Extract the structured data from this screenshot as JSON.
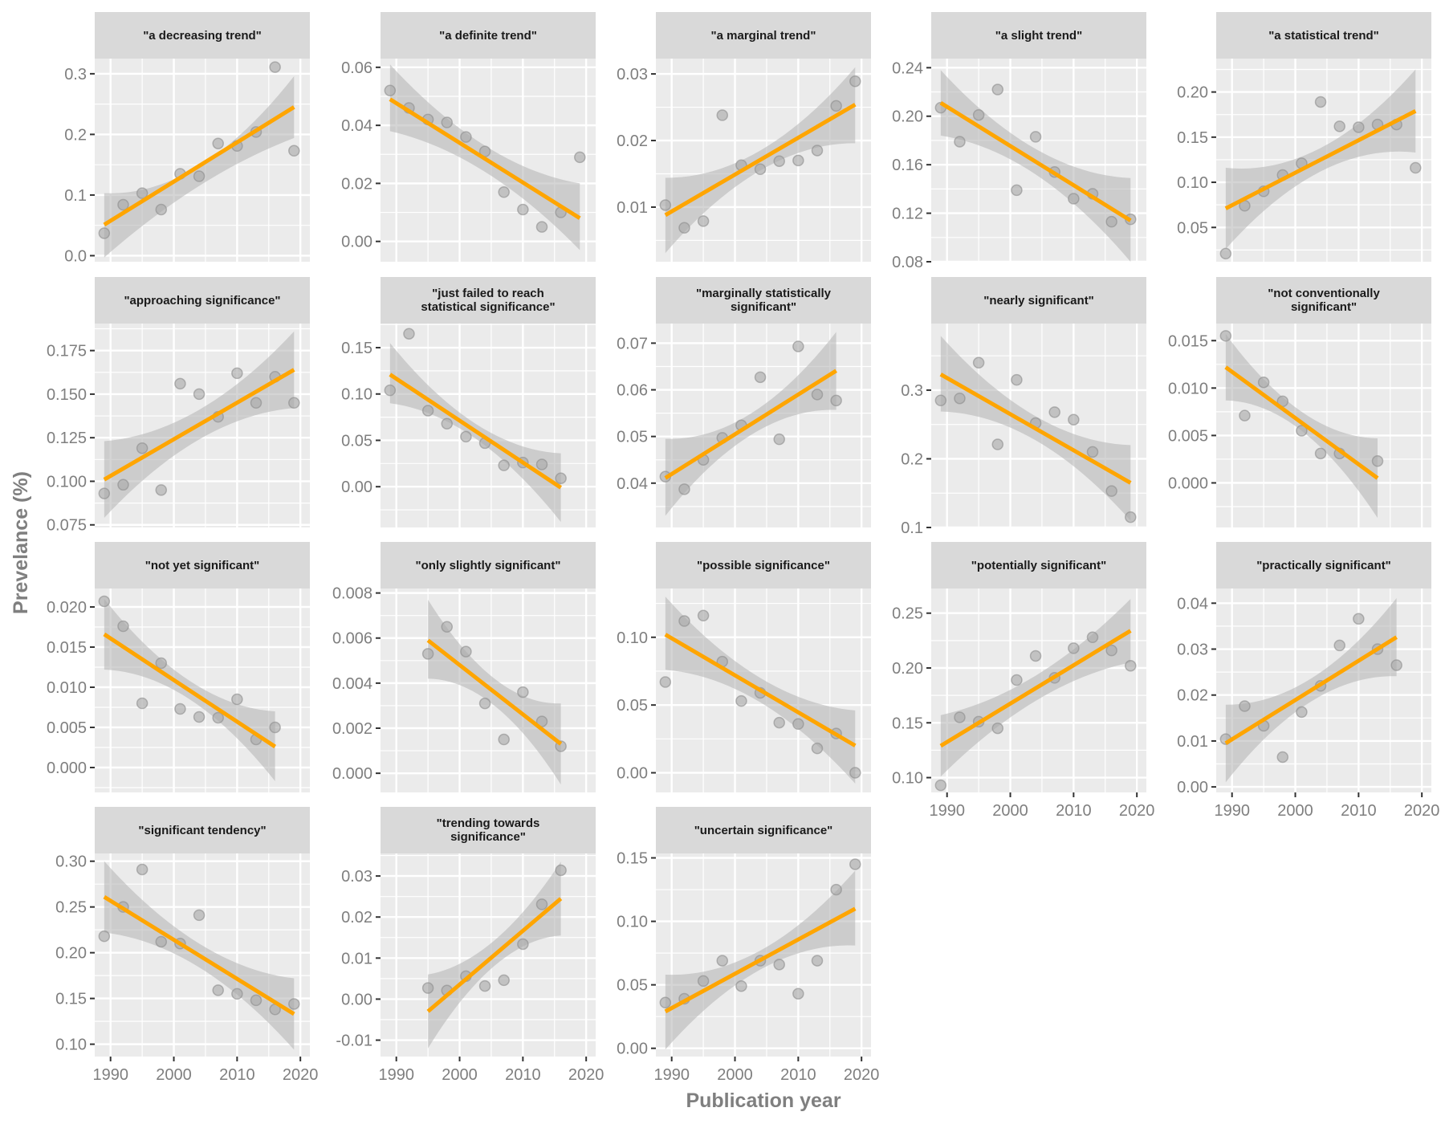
{
  "chart_data": {
    "type": "scatter",
    "description": "Faceted scatter plots with linear regression fit and 95% confidence band",
    "xlabel": "Publication year",
    "ylabel": "Prevelance (%)",
    "x_ticks": [
      1990,
      2000,
      2010,
      2020
    ],
    "xlim": [
      1987.5,
      2021.5
    ],
    "grid": true,
    "colors": {
      "panel_bg": "#ebebeb",
      "strip_bg": "#d9d9d9",
      "grid": "#ffffff",
      "point_fill": "#a6a6a6",
      "point_stroke": "#8c8c8c",
      "fit_line": "#ffa500",
      "ci_band": "#b3b3b3",
      "axis_text": "#7f7f7f"
    },
    "facets": [
      {
        "title": "\"a decreasing trend\"",
        "ylim": [
          -0.01,
          0.325
        ],
        "y_ticks": [
          0.0,
          0.1,
          0.2,
          0.3
        ],
        "y_tick_labels": [
          "0.0",
          "0.1",
          "0.2",
          "0.3"
        ],
        "x": [
          1989,
          1992,
          1995,
          1998,
          2001,
          2004,
          2007,
          2010,
          2013,
          2016,
          2019
        ],
        "y": [
          0.037,
          0.084,
          0.103,
          0.076,
          0.135,
          0.131,
          0.185,
          0.181,
          0.204,
          0.311,
          0.173
        ],
        "fit": [
          0.051,
          0.245
        ],
        "ci_lower": [
          -0.003,
          0.194
        ],
        "ci_upper": [
          0.103,
          0.296
        ],
        "ci_mid": [
          0.115,
          0.148
        ]
      },
      {
        "title": "\"a definite trend\"",
        "ylim": [
          -0.007,
          0.063
        ],
        "y_ticks": [
          0.0,
          0.02,
          0.04,
          0.06
        ],
        "y_tick_labels": [
          "0.00",
          "0.02",
          "0.04",
          "0.06"
        ],
        "x": [
          1989,
          1992,
          1995,
          1998,
          2001,
          2004,
          2007,
          2010,
          2013,
          2016,
          2019
        ],
        "y": [
          0.052,
          0.046,
          0.042,
          0.041,
          0.036,
          0.031,
          0.017,
          0.011,
          0.005,
          0.01,
          0.029
        ],
        "fit": [
          0.049,
          0.008
        ],
        "ci_lower": [
          0.038,
          -0.003
        ],
        "ci_upper": [
          0.061,
          0.02
        ],
        "ci_mid": [
          0.024,
          0.033
        ]
      },
      {
        "title": "\"a marginal trend\"",
        "ylim": [
          0.0018,
          0.0323
        ],
        "y_ticks": [
          0.01,
          0.02,
          0.03
        ],
        "y_tick_labels": [
          "0.01",
          "0.02",
          "0.03"
        ],
        "x": [
          1989,
          1992,
          1995,
          1998,
          2001,
          2004,
          2007,
          2010,
          2013,
          2016,
          2019
        ],
        "y": [
          0.0103,
          0.0069,
          0.0079,
          0.0238,
          0.0163,
          0.0157,
          0.0169,
          0.017,
          0.0185,
          0.0252,
          0.0289
        ],
        "fit": [
          0.0088,
          0.0254
        ],
        "ci_lower": [
          0.0031,
          0.0196
        ],
        "ci_upper": [
          0.0144,
          0.031
        ],
        "ci_mid": [
          0.0155,
          0.0185
        ]
      },
      {
        "title": "\"a slight trend\"",
        "ylim": [
          0.08,
          0.2475
        ],
        "y_ticks": [
          0.08,
          0.12,
          0.16,
          0.2,
          0.24
        ],
        "y_tick_labels": [
          "0.08",
          "0.12",
          "0.16",
          "0.20",
          "0.24"
        ],
        "x": [
          1989,
          1992,
          1995,
          1998,
          2001,
          2004,
          2007,
          2010,
          2013,
          2016,
          2019
        ],
        "y": [
          0.207,
          0.179,
          0.201,
          0.222,
          0.139,
          0.183,
          0.154,
          0.132,
          0.136,
          0.113,
          0.115
        ],
        "fit": [
          0.211,
          0.114
        ],
        "ci_lower": [
          0.184,
          0.08
        ],
        "ci_upper": [
          0.238,
          0.149
        ],
        "ci_mid": [
          0.152,
          0.173
        ]
      },
      {
        "title": "\"a statistical trend\"",
        "ylim": [
          0.012,
          0.237
        ],
        "y_ticks": [
          0.05,
          0.1,
          0.15,
          0.2
        ],
        "y_tick_labels": [
          "0.05",
          "0.10",
          "0.15",
          "0.20"
        ],
        "x": [
          1989,
          1992,
          1995,
          1998,
          2001,
          2004,
          2007,
          2010,
          2013,
          2016,
          2019
        ],
        "y": [
          0.021,
          0.074,
          0.09,
          0.108,
          0.121,
          0.189,
          0.162,
          0.161,
          0.164,
          0.164,
          0.116
        ],
        "fit": [
          0.071,
          0.179
        ],
        "ci_lower": [
          0.026,
          0.133
        ],
        "ci_upper": [
          0.116,
          0.225
        ],
        "ci_mid": [
          0.112,
          0.138
        ]
      },
      {
        "title": "\"approaching significance\"",
        "ylim": [
          0.0735,
          0.1905
        ],
        "y_ticks": [
          0.075,
          0.1,
          0.125,
          0.15,
          0.175
        ],
        "y_tick_labels": [
          "0.075",
          "0.100",
          "0.125",
          "0.150",
          "0.175"
        ],
        "x": [
          1989,
          1992,
          1995,
          1998,
          2001,
          2004,
          2007,
          2010,
          2013,
          2016,
          2019
        ],
        "y": [
          0.093,
          0.098,
          0.119,
          0.095,
          0.156,
          0.15,
          0.137,
          0.162,
          0.145,
          0.16,
          0.145
        ],
        "fit": [
          0.101,
          0.164
        ],
        "ci_lower": [
          0.079,
          0.142
        ],
        "ci_upper": [
          0.123,
          0.186
        ],
        "ci_mid": [
          0.124,
          0.141
        ]
      },
      {
        "title": "\"just failed to reach\nstatistical significance\"",
        "ylim": [
          -0.044,
          0.176
        ],
        "y_ticks": [
          0.0,
          0.05,
          0.1,
          0.15
        ],
        "y_tick_labels": [
          "0.00",
          "0.05",
          "0.10",
          "0.15"
        ],
        "x": [
          1989,
          1992,
          1995,
          1998,
          2001,
          2004,
          2007,
          2010,
          2013,
          2016
        ],
        "y": [
          0.104,
          0.165,
          0.082,
          0.068,
          0.054,
          0.047,
          0.023,
          0.026,
          0.024,
          0.009
        ],
        "fit": [
          0.121,
          -0.001
        ],
        "ci_lower": [
          0.09,
          -0.038
        ],
        "ci_upper": [
          0.155,
          0.036
        ],
        "ci_mid": [
          0.052,
          0.068
        ]
      },
      {
        "title": "\"marginally statistically\nsignificant\"",
        "ylim": [
          0.0305,
          0.0742
        ],
        "y_ticks": [
          0.04,
          0.05,
          0.06,
          0.07
        ],
        "y_tick_labels": [
          "0.04",
          "0.05",
          "0.06",
          "0.07"
        ],
        "x": [
          1989,
          1992,
          1995,
          1998,
          2001,
          2004,
          2007,
          2010,
          2013,
          2016
        ],
        "y": [
          0.0414,
          0.0387,
          0.045,
          0.0497,
          0.0524,
          0.0627,
          0.0494,
          0.0693,
          0.059,
          0.0577
        ],
        "fit": [
          0.0411,
          0.0641
        ],
        "ci_lower": [
          0.033,
          0.0557
        ],
        "ci_upper": [
          0.0495,
          0.0724
        ],
        "ci_mid": [
          0.0503,
          0.0549
        ]
      },
      {
        "title": "\"nearly significant\"",
        "ylim": [
          0.1,
          0.397
        ],
        "y_ticks": [
          0.1,
          0.2,
          0.3
        ],
        "y_tick_labels": [
          "0.1",
          "0.2",
          "0.3"
        ],
        "x": [
          1989,
          1992,
          1995,
          1998,
          2001,
          2004,
          2007,
          2010,
          2013,
          2016,
          2019
        ],
        "y": [
          0.285,
          0.288,
          0.34,
          0.221,
          0.315,
          0.252,
          0.268,
          0.257,
          0.21,
          0.153,
          0.115
        ],
        "fit": [
          0.323,
          0.165
        ],
        "ci_lower": [
          0.269,
          0.11
        ],
        "ci_upper": [
          0.379,
          0.22
        ],
        "ci_mid": [
          0.227,
          0.262
        ]
      },
      {
        "title": "\"not conventionally\nsignificant\"",
        "ylim": [
          -0.0047,
          0.0168
        ],
        "y_ticks": [
          0.0,
          0.005,
          0.01,
          0.015
        ],
        "y_tick_labels": [
          "0.000",
          "0.005",
          "0.010",
          "0.015"
        ],
        "x": [
          1989,
          1992,
          1995,
          1998,
          2001,
          2004,
          2007,
          2013
        ],
        "y": [
          0.0155,
          0.0071,
          0.0106,
          0.0086,
          0.0055,
          0.0031,
          0.0031,
          0.0023
        ],
        "fit": [
          0.0122,
          0.0005
        ],
        "ci_lower": [
          0.0087,
          -0.0037
        ],
        "ci_upper": [
          0.0157,
          0.0047
        ],
        "ci_mid": [
          0.0055,
          0.0075
        ]
      },
      {
        "title": "\"not yet significant\"",
        "ylim": [
          -0.0031,
          0.0223
        ],
        "y_ticks": [
          0.0,
          0.005,
          0.01,
          0.015,
          0.02
        ],
        "y_tick_labels": [
          "0.000",
          "0.005",
          "0.010",
          "0.015",
          "0.020"
        ],
        "x": [
          1989,
          1992,
          1995,
          1998,
          2001,
          2004,
          2007,
          2010,
          2013,
          2016
        ],
        "y": [
          0.0207,
          0.0176,
          0.008,
          0.013,
          0.0073,
          0.0063,
          0.0062,
          0.0085,
          0.0035,
          0.005
        ],
        "fit": [
          0.0166,
          0.0026
        ],
        "ci_lower": [
          0.0122,
          -0.0017
        ],
        "ci_upper": [
          0.021,
          0.007
        ],
        "ci_mid": [
          0.0085,
          0.0108
        ]
      },
      {
        "title": "\"only slightly significant\"",
        "ylim": [
          -0.00085,
          0.0082
        ],
        "y_ticks": [
          0.0,
          0.002,
          0.004,
          0.006,
          0.008
        ],
        "y_tick_labels": [
          "0.000",
          "0.002",
          "0.004",
          "0.006",
          "0.008"
        ],
        "x": [
          1995,
          1998,
          2001,
          2004,
          2007,
          2010,
          2013,
          2016
        ],
        "y": [
          0.0053,
          0.0065,
          0.0054,
          0.0031,
          0.0015,
          0.0036,
          0.0023,
          0.0012
        ],
        "fit": [
          0.0059,
          0.0013
        ],
        "ci_lower": [
          0.0042,
          -0.0005
        ],
        "ci_upper": [
          0.0077,
          0.0031
        ],
        "ci_mid": [
          0.003,
          0.0042
        ]
      },
      {
        "title": "\"possible significance\"",
        "ylim": [
          -0.0145,
          0.136
        ],
        "y_ticks": [
          0.0,
          0.05,
          0.1
        ],
        "y_tick_labels": [
          "0.00",
          "0.05",
          "0.10"
        ],
        "x": [
          1989,
          1992,
          1995,
          1998,
          2001,
          2004,
          2007,
          2010,
          2013,
          2016,
          2019
        ],
        "y": [
          0.067,
          0.112,
          0.116,
          0.082,
          0.053,
          0.059,
          0.037,
          0.036,
          0.018,
          0.029,
          0.0
        ],
        "fit": [
          0.102,
          0.02
        ],
        "ci_lower": [
          0.076,
          -0.008
        ],
        "ci_upper": [
          0.13,
          0.046
        ],
        "ci_mid": [
          0.052,
          0.07
        ]
      },
      {
        "title": "\"potentially significant\"",
        "ylim": [
          0.0865,
          0.2725
        ],
        "y_ticks": [
          0.1,
          0.15,
          0.2,
          0.25
        ],
        "y_tick_labels": [
          "0.10",
          "0.15",
          "0.20",
          "0.25"
        ],
        "x": [
          1989,
          1992,
          1995,
          1998,
          2001,
          2004,
          2007,
          2010,
          2013,
          2016,
          2019
        ],
        "y": [
          0.093,
          0.155,
          0.151,
          0.145,
          0.189,
          0.211,
          0.191,
          0.218,
          0.228,
          0.216,
          0.202
        ],
        "fit": [
          0.129,
          0.234
        ],
        "ci_lower": [
          0.101,
          0.205
        ],
        "ci_upper": [
          0.157,
          0.263
        ],
        "ci_mid": [
          0.17,
          0.193
        ]
      },
      {
        "title": "\"practically significant\"",
        "ylim": [
          -0.0012,
          0.0432
        ],
        "y_ticks": [
          0.0,
          0.01,
          0.02,
          0.03,
          0.04
        ],
        "y_tick_labels": [
          "0.00",
          "0.01",
          "0.02",
          "0.03",
          "0.04"
        ],
        "x": [
          1989,
          1992,
          1995,
          1998,
          2001,
          2004,
          2007,
          2010,
          2013,
          2016
        ],
        "y": [
          0.0104,
          0.0176,
          0.0133,
          0.0065,
          0.0163,
          0.022,
          0.0308,
          0.0366,
          0.03,
          0.0265
        ],
        "fit": [
          0.0095,
          0.0326
        ],
        "ci_lower": [
          0.001,
          0.0241
        ],
        "ci_upper": [
          0.0179,
          0.0411
        ],
        "ci_mid": [
          0.0186,
          0.0236
        ]
      },
      {
        "title": "\"significant tendency\"",
        "ylim": [
          0.0865,
          0.3085
        ],
        "y_ticks": [
          0.1,
          0.15,
          0.2,
          0.25,
          0.3
        ],
        "y_tick_labels": [
          "0.10",
          "0.15",
          "0.20",
          "0.25",
          "0.30"
        ],
        "x": [
          1989,
          1992,
          1995,
          1998,
          2001,
          2004,
          2007,
          2010,
          2013,
          2016,
          2019
        ],
        "y": [
          0.218,
          0.25,
          0.291,
          0.212,
          0.21,
          0.241,
          0.159,
          0.155,
          0.148,
          0.138,
          0.144
        ],
        "fit": [
          0.261,
          0.133
        ],
        "ci_lower": [
          0.222,
          0.094
        ],
        "ci_upper": [
          0.3,
          0.172
        ],
        "ci_mid": [
          0.184,
          0.21
        ]
      },
      {
        "title": "\"trending towards\nsignificance\"",
        "ylim": [
          -0.014,
          0.0355
        ],
        "y_ticks": [
          -0.01,
          0.0,
          0.01,
          0.02,
          0.03
        ],
        "y_tick_labels": [
          "-0.01",
          "0.00",
          "0.01",
          "0.02",
          "0.03"
        ],
        "x": [
          1995,
          1998,
          2001,
          2004,
          2007,
          2010,
          2013,
          2016
        ],
        "y": [
          0.0027,
          0.0021,
          0.0056,
          0.0032,
          0.0046,
          0.0134,
          0.0231,
          0.0314
        ],
        "fit": [
          -0.003,
          0.0245
        ],
        "ci_lower": [
          -0.012,
          0.0155
        ],
        "ci_upper": [
          0.006,
          0.0335
        ],
        "ci_mid": [
          0.0081,
          0.0143
        ]
      },
      {
        "title": "\"uncertain significance\"",
        "ylim": [
          -0.0065,
          0.1535
        ],
        "y_ticks": [
          0.0,
          0.05,
          0.1,
          0.15
        ],
        "y_tick_labels": [
          "0.00",
          "0.05",
          "0.10",
          "0.15"
        ],
        "x": [
          1989,
          1992,
          1995,
          1998,
          2001,
          2004,
          2007,
          2010,
          2013,
          2016,
          2019
        ],
        "y": [
          0.036,
          0.039,
          0.053,
          0.069,
          0.049,
          0.069,
          0.066,
          0.043,
          0.069,
          0.125,
          0.145
        ],
        "fit": [
          0.029,
          0.11
        ],
        "ci_lower": [
          -0.001,
          0.081
        ],
        "ci_upper": [
          0.058,
          0.14
        ],
        "ci_mid": [
          0.062,
          0.077
        ]
      }
    ]
  }
}
